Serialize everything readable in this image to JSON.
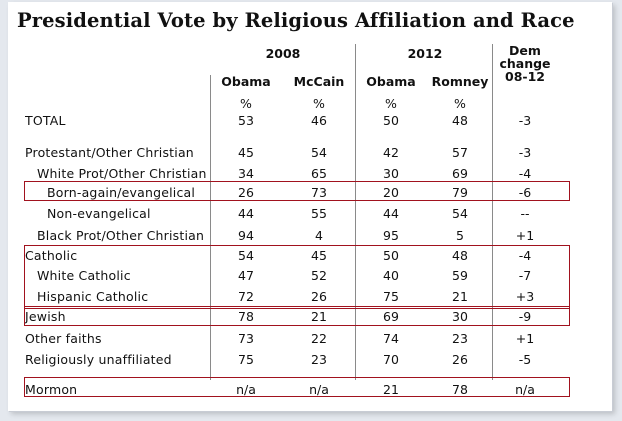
{
  "title": "Presidential Vote by Religious Affiliation and Race",
  "columns": {
    "group_2008": "2008",
    "group_2012": "2012",
    "obama_2008": "Obama",
    "mccain_2008": "McCain",
    "obama_2012": "Obama",
    "romney_2012": "Romney",
    "dem_change_line1": "Dem",
    "dem_change_line2": "change",
    "dem_change_line3": "08-12",
    "pct": "%"
  },
  "rows": [
    {
      "label": "TOTAL",
      "indent": 0,
      "o08": "53",
      "m08": "46",
      "o12": "50",
      "r12": "48",
      "change": "-3"
    },
    {
      "label": "Protestant/Other Christian",
      "indent": 0,
      "o08": "45",
      "m08": "54",
      "o12": "42",
      "r12": "57",
      "change": "-3"
    },
    {
      "label": "White Prot/Other Christian",
      "indent": 1,
      "o08": "34",
      "m08": "65",
      "o12": "30",
      "r12": "69",
      "change": "-4"
    },
    {
      "label": "Born-again/evangelical",
      "indent": 2,
      "o08": "26",
      "m08": "73",
      "o12": "20",
      "r12": "79",
      "change": "-6"
    },
    {
      "label": "Non-evangelical",
      "indent": 2,
      "o08": "44",
      "m08": "55",
      "o12": "44",
      "r12": "54",
      "change": "--"
    },
    {
      "label": "Black Prot/Other Christian",
      "indent": 1,
      "o08": "94",
      "m08": "4",
      "o12": "95",
      "r12": "5",
      "change": "+1"
    },
    {
      "label": "Catholic",
      "indent": 0,
      "o08": "54",
      "m08": "45",
      "o12": "50",
      "r12": "48",
      "change": "-4"
    },
    {
      "label": "White Catholic",
      "indent": 1,
      "o08": "47",
      "m08": "52",
      "o12": "40",
      "r12": "59",
      "change": "-7"
    },
    {
      "label": "Hispanic Catholic",
      "indent": 1,
      "o08": "72",
      "m08": "26",
      "o12": "75",
      "r12": "21",
      "change": "+3"
    },
    {
      "label": "Jewish",
      "indent": 0,
      "o08": "78",
      "m08": "21",
      "o12": "69",
      "r12": "30",
      "change": "-9"
    },
    {
      "label": "Other faiths",
      "indent": 0,
      "o08": "73",
      "m08": "22",
      "o12": "74",
      "r12": "23",
      "change": "+1"
    },
    {
      "label": "Religiously unaffiliated",
      "indent": 0,
      "o08": "75",
      "m08": "23",
      "o12": "70",
      "r12": "26",
      "change": "-5"
    },
    {
      "label": "Mormon",
      "indent": 0,
      "o08": "n/a",
      "m08": "n/a",
      "o12": "21",
      "r12": "78",
      "change": "n/a"
    }
  ],
  "colors": {
    "highlight_box": "#a1121e",
    "rule": "#8a8a8a",
    "background": "#ffffff"
  }
}
